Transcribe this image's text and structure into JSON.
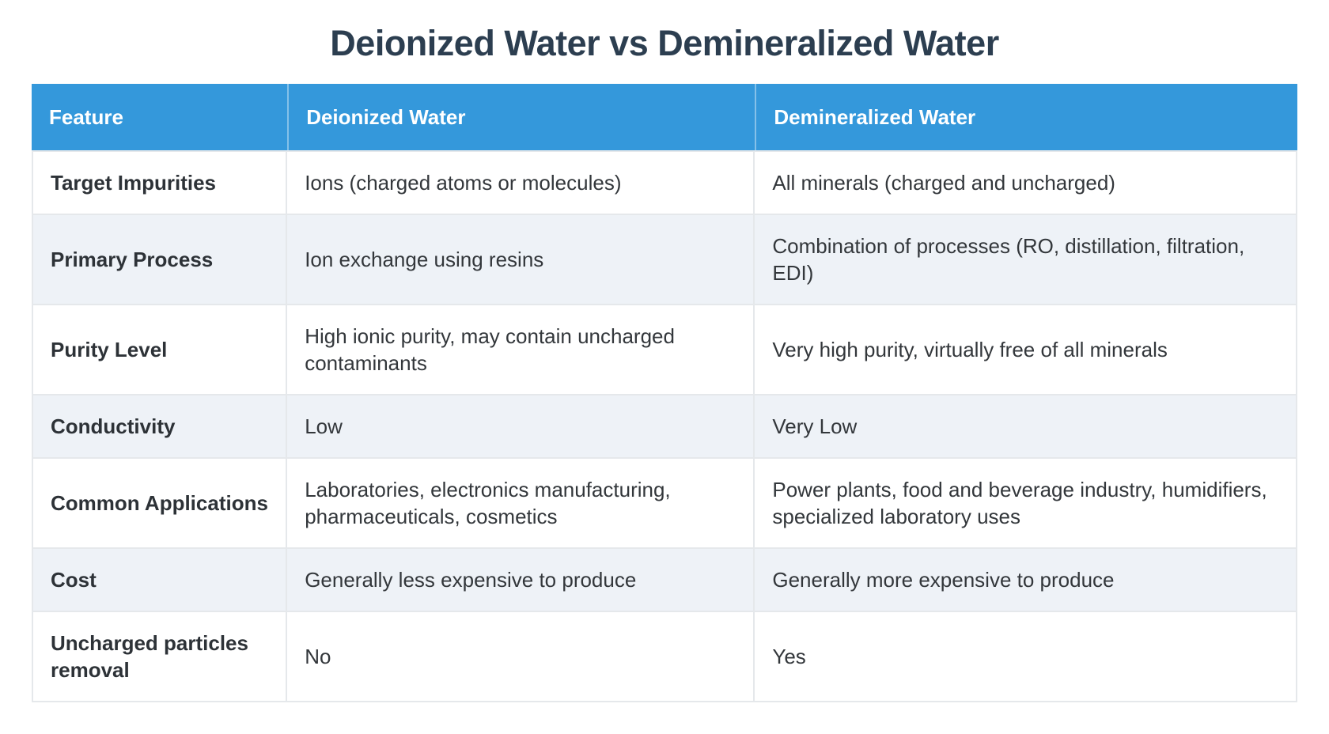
{
  "page": {
    "title": "Deionized Water vs Demineralized Water"
  },
  "theme": {
    "header_bg": "#3498db",
    "header_text": "#ffffff",
    "row_bg": "#ffffff",
    "row_alt_bg": "#eef2f7",
    "border_color": "#e5e8eb",
    "title_color": "#2c3e50",
    "body_text_color": "#33373b"
  },
  "table": {
    "columns": [
      "Feature",
      "Deionized Water",
      "Demineralized Water"
    ],
    "rows": [
      {
        "feature": "Target Impurities",
        "deionized": "Ions (charged atoms or molecules)",
        "demineralized": "All minerals (charged and uncharged)"
      },
      {
        "feature": "Primary Process",
        "deionized": "Ion exchange using resins",
        "demineralized": "Combination of processes (RO, distillation, filtration, EDI)"
      },
      {
        "feature": "Purity Level",
        "deionized": "High ionic purity, may contain uncharged contaminants",
        "demineralized": "Very high purity, virtually free of all minerals"
      },
      {
        "feature": "Conductivity",
        "deionized": "Low",
        "demineralized": "Very Low"
      },
      {
        "feature": "Common Applications",
        "deionized": "Laboratories, electronics manufacturing, pharmaceuticals, cosmetics",
        "demineralized": "Power plants, food and beverage industry, humidifiers, specialized laboratory uses"
      },
      {
        "feature": "Cost",
        "deionized": "Generally less expensive to produce",
        "demineralized": "Generally more expensive to produce"
      },
      {
        "feature": "Uncharged particles removal",
        "deionized": "No",
        "demineralized": "Yes"
      }
    ]
  }
}
